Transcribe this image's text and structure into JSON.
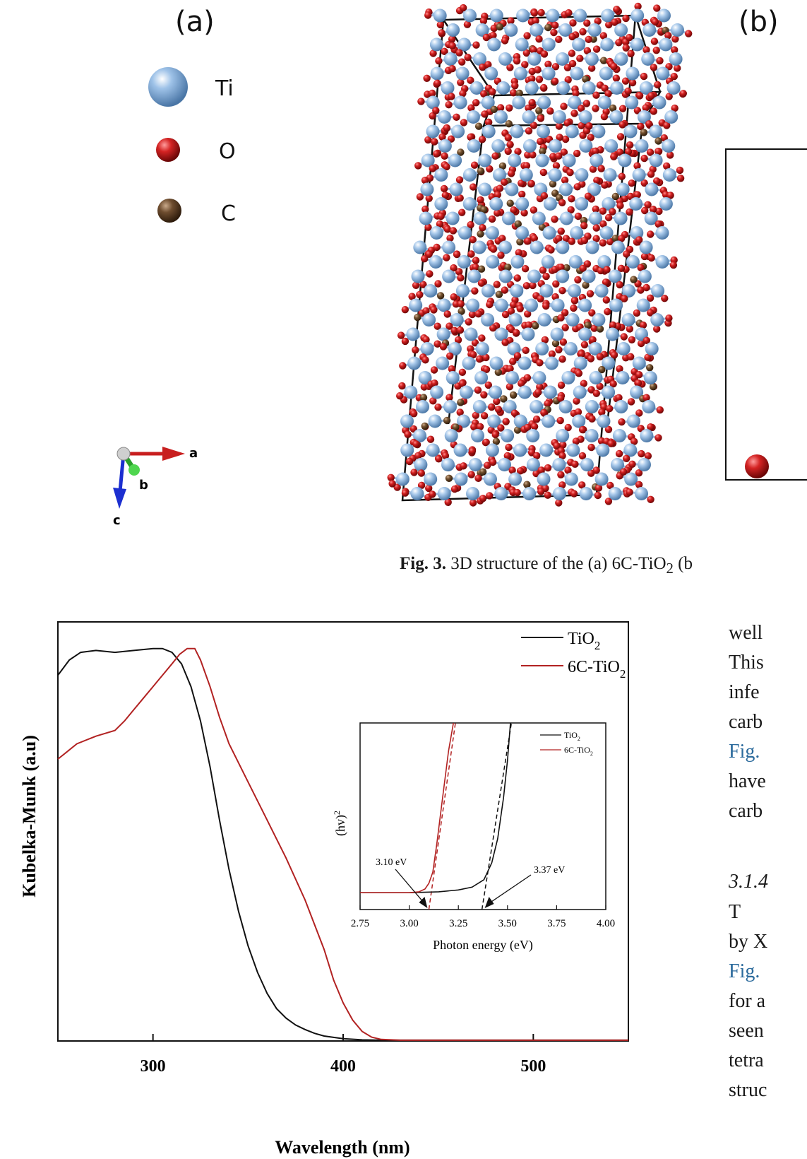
{
  "figure3": {
    "panel_a_label": "(a)",
    "panel_b_label": "(b)",
    "legend": [
      {
        "symbol": "Ti",
        "color": "#8fb4dc"
      },
      {
        "symbol": "O",
        "color": "#c41b1b"
      },
      {
        "symbol": "C",
        "color": "#6b4a2c"
      }
    ],
    "axes": {
      "a": "a",
      "b": "b",
      "c": "c"
    },
    "caption_label": "Fig. 3.",
    "caption_text": "3D structure of the (a) 6C-TiO",
    "caption_sub": "2",
    "caption_tail": " (b"
  },
  "body": {
    "lines": [
      {
        "text": "well",
        "style": "normal"
      },
      {
        "text": "This",
        "style": "normal"
      },
      {
        "text": "infe",
        "style": "normal"
      },
      {
        "text": "carb",
        "style": "normal"
      },
      {
        "text": "Fig.",
        "style": "link"
      },
      {
        "text": "have",
        "style": "normal"
      },
      {
        "text": "carb",
        "style": "normal"
      }
    ],
    "section_heading": "3.1.4",
    "lines2": [
      {
        "text": "T",
        "style": "normal"
      },
      {
        "text": "by X",
        "style": "normal"
      },
      {
        "text": "Fig.",
        "style": "link"
      },
      {
        "text": "for a",
        "style": "normal"
      },
      {
        "text": "seen",
        "style": "normal"
      },
      {
        "text": "tetra",
        "style": "normal"
      },
      {
        "text": "struc",
        "style": "normal"
      }
    ]
  },
  "chart_data": [
    {
      "type": "line",
      "xlabel": "Wavelength (nm)",
      "ylabel": "Kubelka-Munk (a.u)",
      "xlim": [
        250,
        550
      ],
      "ylim": [
        0,
        1.1
      ],
      "xticks": [
        300,
        400,
        500
      ],
      "legend_position": "top-right",
      "series": [
        {
          "name": "TiO2",
          "name_main": "TiO",
          "name_sub": "2",
          "color": "#111111",
          "points": [
            [
              250,
              0.96
            ],
            [
              256,
              1.0
            ],
            [
              262,
              1.02
            ],
            [
              270,
              1.025
            ],
            [
              280,
              1.02
            ],
            [
              290,
              1.025
            ],
            [
              300,
              1.03
            ],
            [
              305,
              1.03
            ],
            [
              310,
              1.02
            ],
            [
              315,
              0.99
            ],
            [
              320,
              0.93
            ],
            [
              325,
              0.84
            ],
            [
              330,
              0.72
            ],
            [
              335,
              0.58
            ],
            [
              340,
              0.45
            ],
            [
              345,
              0.34
            ],
            [
              350,
              0.25
            ],
            [
              355,
              0.18
            ],
            [
              360,
              0.125
            ],
            [
              365,
              0.085
            ],
            [
              370,
              0.06
            ],
            [
              375,
              0.042
            ],
            [
              380,
              0.03
            ],
            [
              385,
              0.02
            ],
            [
              390,
              0.013
            ],
            [
              400,
              0.006
            ],
            [
              410,
              0.003
            ],
            [
              420,
              0.002
            ],
            [
              550,
              0.002
            ]
          ]
        },
        {
          "name": "6C-TiO2",
          "name_main": "6C-TiO",
          "name_sub": "2",
          "color": "#b22222",
          "points": [
            [
              250,
              0.74
            ],
            [
              255,
              0.76
            ],
            [
              260,
              0.78
            ],
            [
              270,
              0.8
            ],
            [
              280,
              0.815
            ],
            [
              285,
              0.84
            ],
            [
              290,
              0.87
            ],
            [
              295,
              0.9
            ],
            [
              300,
              0.93
            ],
            [
              305,
              0.96
            ],
            [
              310,
              0.99
            ],
            [
              314,
              1.015
            ],
            [
              318,
              1.03
            ],
            [
              322,
              1.03
            ],
            [
              325,
              1.0
            ],
            [
              330,
              0.93
            ],
            [
              335,
              0.85
            ],
            [
              340,
              0.78
            ],
            [
              350,
              0.68
            ],
            [
              360,
              0.58
            ],
            [
              370,
              0.48
            ],
            [
              380,
              0.37
            ],
            [
              390,
              0.24
            ],
            [
              395,
              0.16
            ],
            [
              400,
              0.1
            ],
            [
              405,
              0.055
            ],
            [
              410,
              0.025
            ],
            [
              415,
              0.01
            ],
            [
              420,
              0.004
            ],
            [
              430,
              0.002
            ],
            [
              550,
              0.002
            ]
          ]
        }
      ]
    },
    {
      "type": "line",
      "title": "",
      "xlabel": "Photon energy (eV)",
      "ylabel": "(hv)²",
      "ylabel_main": "(hv)",
      "ylabel_sup": "2",
      "xlim": [
        2.75,
        4.0
      ],
      "ylim": [
        0,
        1
      ],
      "xticks": [
        2.75,
        3.0,
        3.25,
        3.5,
        3.75,
        4.0
      ],
      "xtick_labels": [
        "2.75",
        "3.00",
        "3.25",
        "3.50",
        "3.75",
        "4.00"
      ],
      "legend_position": "top-right",
      "annotations": [
        {
          "text": "3.10 eV",
          "x": 3.1
        },
        {
          "text": "3.37 eV",
          "x": 3.37
        }
      ],
      "series": [
        {
          "name": "TiO2",
          "name_main": "TiO",
          "name_sub": "2",
          "color": "#111111",
          "points": [
            [
              2.75,
              0.09
            ],
            [
              3.0,
              0.09
            ],
            [
              3.15,
              0.095
            ],
            [
              3.25,
              0.105
            ],
            [
              3.32,
              0.12
            ],
            [
              3.38,
              0.16
            ],
            [
              3.42,
              0.25
            ],
            [
              3.45,
              0.38
            ],
            [
              3.48,
              0.6
            ],
            [
              3.5,
              0.8
            ],
            [
              3.515,
              1.0
            ]
          ]
        },
        {
          "name": "6C-TiO2",
          "name_main": "6C-TiO",
          "name_sub": "2",
          "color": "#b22222",
          "points": [
            [
              2.75,
              0.09
            ],
            [
              3.0,
              0.09
            ],
            [
              3.05,
              0.095
            ],
            [
              3.08,
              0.11
            ],
            [
              3.1,
              0.14
            ],
            [
              3.12,
              0.2
            ],
            [
              3.14,
              0.35
            ],
            [
              3.17,
              0.6
            ],
            [
              3.2,
              0.85
            ],
            [
              3.225,
              1.0
            ]
          ]
        }
      ],
      "tangents": [
        {
          "series": "6C-TiO2",
          "from": [
            3.1,
            0.0
          ],
          "to": [
            3.235,
            1.0
          ],
          "color": "#b22222"
        },
        {
          "series": "TiO2",
          "from": [
            3.37,
            0.0
          ],
          "to": [
            3.52,
            1.0
          ],
          "color": "#111111"
        }
      ]
    }
  ]
}
